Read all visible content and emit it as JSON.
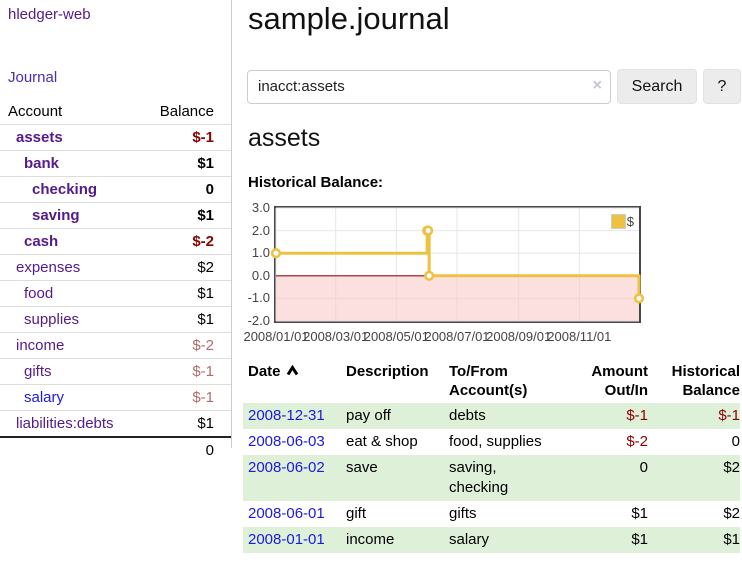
{
  "sidebar": {
    "app_title": "hledger-web",
    "nav": {
      "journal_label": "Journal"
    },
    "accounts_table": {
      "account_header": "Account",
      "balance_header": "Balance",
      "rows": [
        {
          "label": "assets",
          "indent": 1,
          "bold": true,
          "balance": "$-1",
          "balance_style": "neg-strong"
        },
        {
          "label": "bank",
          "indent": 2,
          "bold": true,
          "balance": "$1",
          "balance_style": ""
        },
        {
          "label": "checking",
          "indent": 3,
          "bold": true,
          "balance": "0",
          "balance_style": ""
        },
        {
          "label": "saving",
          "indent": 3,
          "bold": true,
          "balance": "$1",
          "balance_style": ""
        },
        {
          "label": "cash",
          "indent": 2,
          "bold": true,
          "balance": "$-2",
          "balance_style": "neg-strong"
        },
        {
          "label": "expenses",
          "indent": 1,
          "bold": false,
          "balance": "$2",
          "balance_style": ""
        },
        {
          "label": "food",
          "indent": 2,
          "bold": false,
          "balance": "$1",
          "balance_style": ""
        },
        {
          "label": "supplies",
          "indent": 2,
          "bold": false,
          "balance": "$1",
          "balance_style": ""
        },
        {
          "label": "income",
          "indent": 1,
          "bold": false,
          "balance": "$-2",
          "balance_style": "neg-soft"
        },
        {
          "label": "gifts",
          "indent": 2,
          "bold": false,
          "balance": "$-1",
          "balance_style": "neg-soft"
        },
        {
          "label": "salary",
          "indent": 2,
          "bold": false,
          "balance": "$-1",
          "balance_style": "neg-soft",
          "label_style": "blue"
        },
        {
          "label": "liabilities:debts",
          "indent": 1,
          "bold": false,
          "balance": "$1",
          "balance_style": ""
        }
      ],
      "total": "0"
    }
  },
  "header": {
    "title": "sample.journal"
  },
  "search": {
    "value": "inacct:assets",
    "clear_icon": "×",
    "button_label": "Search",
    "help_label": "?"
  },
  "account_page": {
    "heading": "assets",
    "chart_label": "Historical Balance:"
  },
  "chart_data": {
    "type": "line",
    "step": true,
    "title": "Historical Balance:",
    "legend": {
      "label": "$",
      "position": "top-right"
    },
    "series": [
      {
        "name": "$",
        "color": "#edc240",
        "points": [
          [
            "2008-01-01",
            1
          ],
          [
            "2008-06-01",
            2
          ],
          [
            "2008-06-02",
            2
          ],
          [
            "2008-06-03",
            0
          ],
          [
            "2008-12-31",
            -1
          ]
        ]
      }
    ],
    "xlim": [
      "2008-01-01",
      "2008-12-31"
    ],
    "ylim": [
      -2,
      3
    ],
    "x_ticks": [
      "2008/01/01",
      "2008/03/01",
      "2008/05/01",
      "2008/07/01",
      "2008/09/01",
      "2008/11/01"
    ],
    "y_ticks": [
      "3.0",
      "2.0",
      "1.0",
      "0.0",
      "-1.0",
      "-2.0"
    ],
    "grid": true,
    "grid_color": "#e6e6e6",
    "negative_region_color": "#f9c6c6",
    "zero_line_color": "#991111",
    "axis_text_color": "#444444"
  },
  "register": {
    "columns": {
      "date": "Date",
      "description": "Description",
      "accounts": "To/From Account(s)",
      "amount": "Amount Out/In",
      "balance": "Historical Balance"
    },
    "rows": [
      {
        "date": "2008-12-31",
        "description": "pay off",
        "accounts": "debts",
        "amount": "$-1",
        "amount_negative": true,
        "balance": "$-1",
        "balance_negative": true,
        "shaded": true
      },
      {
        "date": "2008-06-03",
        "description": "eat & shop",
        "accounts": "food, supplies",
        "amount": "$-2",
        "amount_negative": true,
        "balance": "0",
        "balance_negative": false,
        "shaded": false
      },
      {
        "date": "2008-06-02",
        "description": "save",
        "accounts": "saving,\nchecking",
        "amount": "0",
        "amount_negative": false,
        "balance": "$2",
        "balance_negative": false,
        "shaded": true
      },
      {
        "date": "2008-06-01",
        "description": "gift",
        "accounts": "gifts",
        "amount": "$1",
        "amount_negative": false,
        "balance": "$2",
        "balance_negative": false,
        "shaded": false
      },
      {
        "date": "2008-01-01",
        "description": "income",
        "accounts": "salary",
        "amount": "$1",
        "amount_negative": false,
        "balance": "$1",
        "balance_negative": false,
        "shaded": true
      }
    ]
  },
  "colors": {
    "link_purple": "#551a8b",
    "link_blue": "#1a1adf",
    "negative_strong": "#8b0000",
    "negative_soft": "#b36b6b",
    "row_green": "#dff0d8",
    "series_gold": "#edc240",
    "chart_border": "#474747"
  }
}
